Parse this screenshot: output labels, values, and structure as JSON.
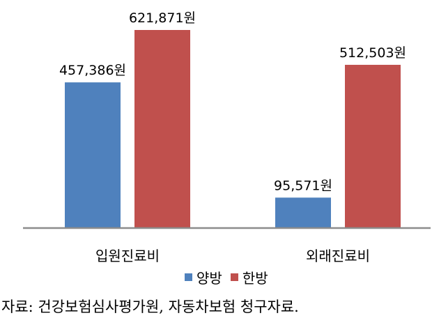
{
  "chart_data": {
    "type": "bar",
    "categories": [
      "입원진료비",
      "외래진료비"
    ],
    "series": [
      {
        "name": "양방",
        "color": "#4f81bd",
        "values": [
          457386,
          95571
        ],
        "labels": [
          "457,386원",
          "95,571원"
        ]
      },
      {
        "name": "한방",
        "color": "#c0504d",
        "values": [
          621871,
          512503
        ],
        "labels": [
          "621,871원",
          "512,503원"
        ]
      }
    ],
    "ylim": [
      0,
      700000
    ],
    "grid": false,
    "legend_position": "bottom"
  },
  "source_note": "자료: 건강보험심사평가원, 자동차보험 청구자료."
}
